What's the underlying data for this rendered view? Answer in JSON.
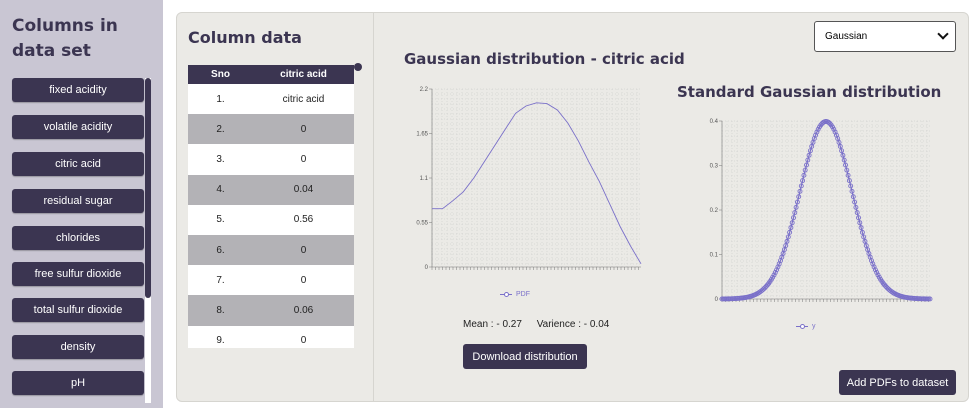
{
  "sidebar": {
    "title": "Columns in data set",
    "items": [
      {
        "label": "fixed acidity"
      },
      {
        "label": "volatile acidity"
      },
      {
        "label": "citric acid"
      },
      {
        "label": "residual sugar"
      },
      {
        "label": "chlorides"
      },
      {
        "label": "free sulfur dioxide"
      },
      {
        "label": "total sulfur dioxide"
      },
      {
        "label": "density"
      },
      {
        "label": "pH"
      }
    ]
  },
  "column_panel": {
    "title": "Column data",
    "headers": [
      "Sno",
      "citric acid"
    ],
    "rows": [
      [
        "1.",
        "citric acid"
      ],
      [
        "2.",
        "0"
      ],
      [
        "3.",
        "0"
      ],
      [
        "4.",
        "0.04"
      ],
      [
        "5.",
        "0.56"
      ],
      [
        "6.",
        "0"
      ],
      [
        "7.",
        "0"
      ],
      [
        "8.",
        "0.06"
      ],
      [
        "9.",
        "0"
      ]
    ]
  },
  "distribution_select": {
    "value": "Gaussian"
  },
  "stats": {
    "mean": "Mean : - 0.27",
    "variance": "Varience : - 0.04"
  },
  "buttons": {
    "download": "Download distribution",
    "add_pdfs": "Add PDFs to dataset"
  },
  "colors": {
    "accent": "#3b3551",
    "series": "#7a70c9",
    "panel": "#ebeae6",
    "sidebar": "#c9c6d3"
  },
  "chart_data": [
    {
      "type": "line",
      "title": "Gaussian distribution - citric acid",
      "yticks": [
        "0",
        "0.55",
        "1.1",
        "1.65",
        "2.2"
      ],
      "ylim": [
        0,
        2.2
      ],
      "xlim": [
        0,
        1
      ],
      "legend": [
        "PDF"
      ],
      "legend_position": "bottom-center",
      "grid": true,
      "series": [
        {
          "name": "PDF",
          "x": [
            0,
            0.05,
            0.1,
            0.15,
            0.2,
            0.25,
            0.3,
            0.35,
            0.4,
            0.45,
            0.5,
            0.55,
            0.6,
            0.65,
            0.7,
            0.75,
            0.8,
            0.85,
            0.9,
            0.95,
            1.0
          ],
          "values": [
            0.72,
            0.72,
            0.82,
            0.93,
            1.1,
            1.3,
            1.5,
            1.7,
            1.9,
            1.99,
            2.03,
            2.02,
            1.94,
            1.78,
            1.56,
            1.3,
            1.06,
            0.78,
            0.5,
            0.26,
            0.04
          ]
        }
      ]
    },
    {
      "type": "line",
      "title": "Standard Gaussian distribution",
      "yticks": [
        "0",
        "0.1",
        "0.2",
        "0.3",
        "0.4"
      ],
      "ylim": [
        0,
        0.4
      ],
      "xlim": [
        -4,
        4
      ],
      "legend": [
        "y"
      ],
      "legend_position": "bottom-center",
      "grid": true,
      "series": [
        {
          "name": "y",
          "x": [
            -4,
            -3.5,
            -3,
            -2.5,
            -2,
            -1.5,
            -1,
            -0.5,
            0,
            0.5,
            1,
            1.5,
            2,
            2.5,
            3,
            3.5,
            4
          ],
          "values": [
            0.0001,
            0.0009,
            0.0044,
            0.0175,
            0.054,
            0.1295,
            0.242,
            0.3521,
            0.3989,
            0.3521,
            0.242,
            0.1295,
            0.054,
            0.0175,
            0.0044,
            0.0009,
            0.0001
          ]
        }
      ]
    }
  ]
}
